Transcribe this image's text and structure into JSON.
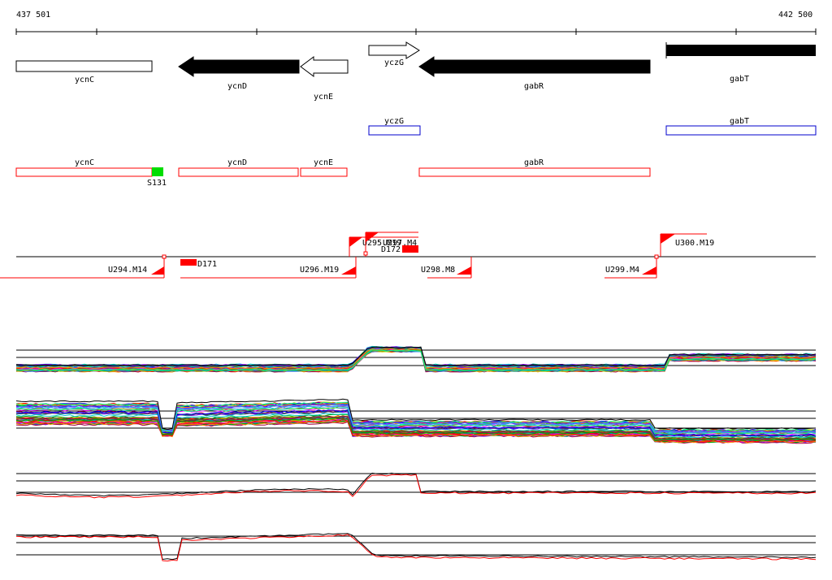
{
  "coords": {
    "start": "437 501",
    "end": "442 500"
  },
  "genes_strand": [
    {
      "name": "ycnC",
      "style": "open"
    },
    {
      "name": "ycnD",
      "style": "arrow-left-filled"
    },
    {
      "name": "ycnE",
      "style": "arrow-left-open"
    },
    {
      "name": "yczG",
      "style": "arrow-right-open"
    },
    {
      "name": "gabR",
      "style": "arrow-left-filled"
    },
    {
      "name": "gabT",
      "style": "filled"
    }
  ],
  "genes_blue": [
    {
      "name": "yczG"
    },
    {
      "name": "gabT"
    }
  ],
  "genes_red": [
    {
      "name": "ycnC"
    },
    {
      "name": "ycnD"
    },
    {
      "name": "ycnE"
    },
    {
      "name": "gabR"
    }
  ],
  "markers": [
    {
      "name": "S131",
      "color": "#00dd00"
    }
  ],
  "segments": [
    {
      "name": "U294.M14"
    },
    {
      "name": "D171"
    },
    {
      "name": "U296.M19"
    },
    {
      "name": "U295.M19"
    },
    {
      "name": "U297.M4"
    },
    {
      "name": "D172"
    },
    {
      "name": "U298.M8"
    },
    {
      "name": "U299.M4"
    },
    {
      "name": "U300.M19"
    }
  ],
  "colors": {
    "segment": "#ff0000",
    "strand": "#000000",
    "blue": "#0000cc",
    "marker": "#00dd00"
  }
}
